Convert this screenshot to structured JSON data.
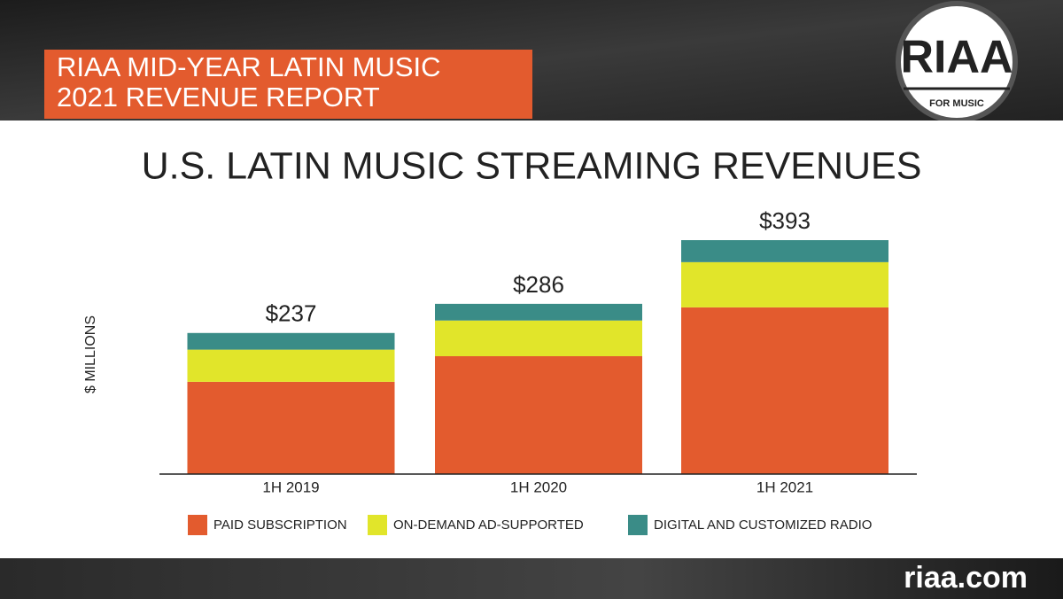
{
  "header": {
    "lines": [
      "RIAA MID-YEAR LATIN MUSIC",
      "2021 REVENUE REPORT"
    ]
  },
  "logo": {
    "name": "RIAA",
    "tagline": "FOR MUSIC"
  },
  "footer": {
    "site": "riaa.com"
  },
  "chart_data": {
    "type": "stacked-bar",
    "title": "U.S. LATIN MUSIC STREAMING REVENUES",
    "y_label": "$ MILLIONS",
    "categories": [
      "1H 2019",
      "1H 2020",
      "1H 2021"
    ],
    "series": [
      {
        "name": "PAID SUBSCRIPTION",
        "color": "#e35b2e",
        "values": [
          155,
          198,
          280
        ]
      },
      {
        "name": "ON-DEMAND AD-SUPPORTED",
        "color": "#e1e52a",
        "values": [
          54,
          60,
          76
        ]
      },
      {
        "name": "DIGITAL AND CUSTOMIZED RADIO",
        "color": "#3a8c87",
        "values": [
          28,
          28,
          37
        ]
      }
    ],
    "totals": [
      237,
      286,
      393
    ],
    "total_labels": [
      "$237",
      "$286",
      "$393"
    ],
    "ylim": [
      0,
      400
    ]
  }
}
